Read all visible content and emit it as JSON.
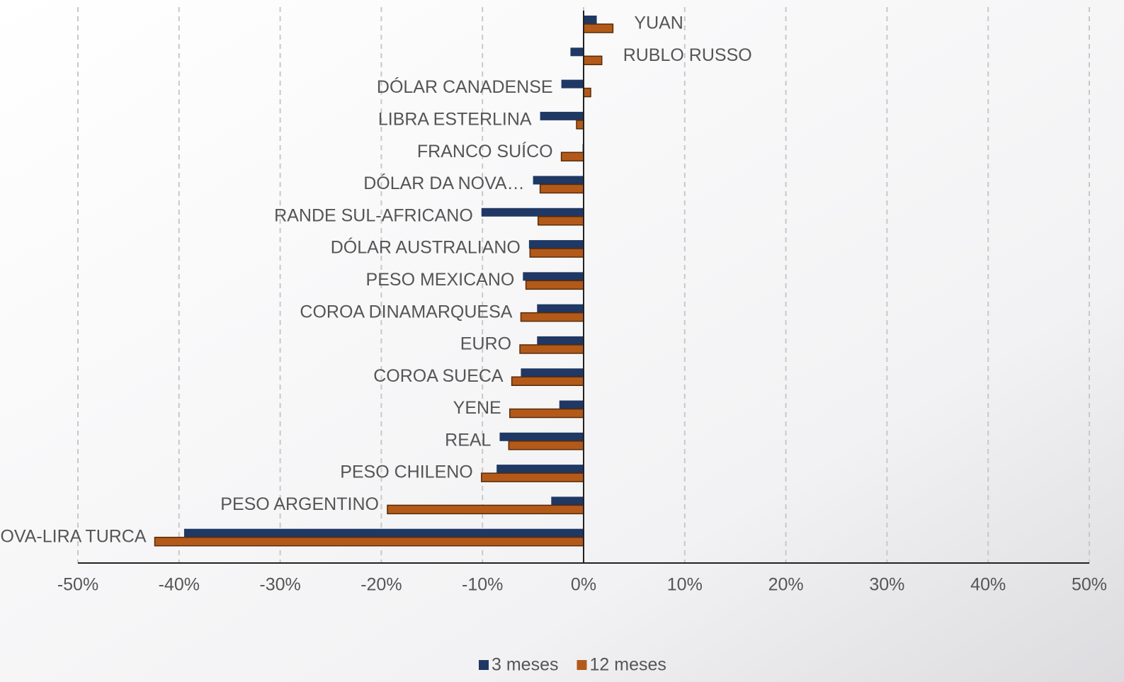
{
  "chart_data": {
    "type": "bar",
    "orientation": "horizontal",
    "categories": [
      "YUAN",
      "RUBLO RUSSO",
      "DÓLAR CANADENSE",
      "LIBRA ESTERLINA",
      "FRANCO SUÍCO",
      "DÓLAR DA NOVA…",
      "RANDE SUL-AFRICANO",
      "DÓLAR AUSTRALIANO",
      "PESO MEXICANO",
      "COROA DINAMARQUESA",
      "EURO",
      "COROA SUECA",
      "YENE",
      "REAL",
      "PESO CHILENO",
      "PESO ARGENTINO",
      "NOVA-LIRA TURCA"
    ],
    "series": [
      {
        "name": "3 meses",
        "color": "#1f3864",
        "values": [
          1.3,
          -1.3,
          -2.2,
          -4.3,
          -0.1,
          -5.0,
          -10.1,
          -5.4,
          -6.0,
          -4.6,
          -4.6,
          -6.2,
          -2.4,
          -8.3,
          -8.6,
          -3.2,
          -39.5
        ]
      },
      {
        "name": "12 meses",
        "color": "#b35a1a",
        "values": [
          2.9,
          1.8,
          0.7,
          -0.7,
          -2.2,
          -4.3,
          -4.5,
          -5.3,
          -5.7,
          -6.2,
          -6.3,
          -7.1,
          -7.3,
          -7.4,
          -10.1,
          -19.4,
          -42.4
        ]
      }
    ],
    "xlim": [
      -50,
      50
    ],
    "xticks": [
      {
        "value": -50,
        "label": "-50%"
      },
      {
        "value": -40,
        "label": "-40%"
      },
      {
        "value": -30,
        "label": "-30%"
      },
      {
        "value": -20,
        "label": "-20%"
      },
      {
        "value": -10,
        "label": "-10%"
      },
      {
        "value": 0,
        "label": "0%"
      },
      {
        "value": 10,
        "label": "10%"
      },
      {
        "value": 20,
        "label": "20%"
      },
      {
        "value": 30,
        "label": "30%"
      },
      {
        "value": 40,
        "label": "40%"
      },
      {
        "value": 50,
        "label": "50%"
      }
    ],
    "grid": true,
    "legend": "bottom"
  }
}
